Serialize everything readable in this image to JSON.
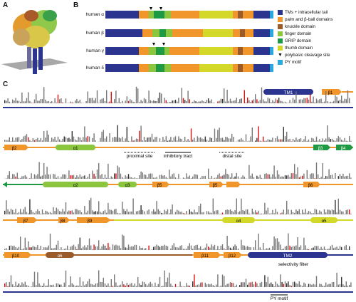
{
  "panels": {
    "a": "A",
    "b": "B",
    "c": "C"
  },
  "colors": {
    "tm": "#2b3590",
    "palm": "#f0962a",
    "knuckle": "#9b5a2a",
    "finger": "#8cc63e",
    "grip": "#1e9a44",
    "thumb": "#d4d829",
    "py": "#29a9e0"
  },
  "subunits": [
    {
      "label": "human α"
    },
    {
      "label": "human β"
    },
    {
      "label": "human γ"
    },
    {
      "label": "human δ"
    }
  ],
  "legend": [
    {
      "label": "TMs + intracellular tail",
      "color_key": "tm"
    },
    {
      "label": "palm and β-ball domains",
      "color_key": "palm"
    },
    {
      "label": "knuckle domain",
      "color_key": "knuckle"
    },
    {
      "label": "finger domain",
      "color_key": "finger"
    },
    {
      "label": "GRIP domain",
      "color_key": "grip"
    },
    {
      "label": "thumb domain",
      "color_key": "thumb"
    },
    {
      "label": "polybasic cleavage site",
      "icon": "triangle-down"
    },
    {
      "label": "PY motif",
      "color_key": "py"
    }
  ],
  "sequence_rows": [
    {
      "labels": [
        "TM1",
        "β1"
      ]
    },
    {
      "labels": [
        "β2",
        "α1",
        "β3",
        "β4"
      ]
    },
    {
      "labels": [
        "α2",
        "α3",
        "β5",
        "β5",
        "β6"
      ]
    },
    {
      "labels": [
        "β7",
        "β8",
        "β9",
        "α4",
        "α5"
      ]
    },
    {
      "labels": [
        "β10",
        "α6",
        "β11",
        "β12",
        "TM2"
      ]
    }
  ],
  "annotations": {
    "proximal": "proximal site",
    "inhibitory": "inhibitory tract",
    "distal": "distal site",
    "selectivity": "selectivity filter",
    "py_motif": "PY motif"
  }
}
